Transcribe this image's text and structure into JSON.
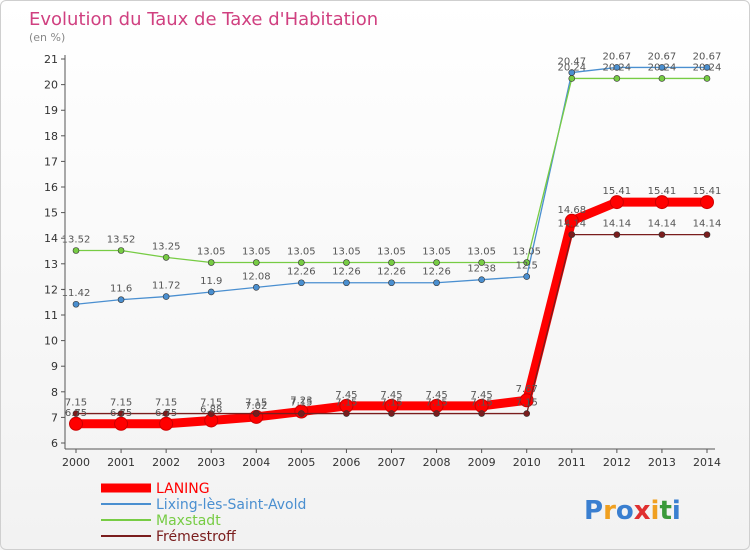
{
  "chart_data": {
    "type": "line",
    "title": "Evolution du Taux de Taxe d'Habitation",
    "subtitle": "(en %)",
    "x": [
      2000,
      2001,
      2002,
      2003,
      2004,
      2005,
      2006,
      2007,
      2008,
      2009,
      2010,
      2011,
      2012,
      2013,
      2014
    ],
    "ylim": [
      6,
      21
    ],
    "yticks": [
      6,
      7,
      8,
      9,
      10,
      11,
      12,
      13,
      14,
      15,
      16,
      17,
      18,
      19,
      20,
      21
    ],
    "grid": false,
    "legend_position": "bottom-left",
    "series": [
      {
        "name": "LANING",
        "color": "#ff0000",
        "values": [
          6.75,
          6.75,
          6.75,
          6.88,
          7.02,
          7.23,
          7.45,
          7.45,
          7.45,
          7.45,
          7.67,
          14.68,
          15.41,
          15.41,
          15.41
        ],
        "labels": [
          "6.75",
          "6.75",
          "6.75",
          "6.88",
          "7.02",
          "7.23",
          "7.45",
          "7.45",
          "7.45",
          "7.45",
          "7.67",
          "14.68",
          "15.41",
          "15.41",
          "15.41"
        ]
      },
      {
        "name": "Lixing-lès-Saint-Avold",
        "color": "#4a8fd0",
        "values": [
          11.42,
          11.6,
          11.72,
          11.9,
          12.08,
          12.26,
          12.26,
          12.26,
          12.26,
          12.38,
          12.5,
          20.47,
          20.67,
          20.67,
          20.67
        ],
        "labels": [
          "11.42",
          "11.6",
          "11.72",
          "11.9",
          "12.08",
          "12.26",
          "12.26",
          "12.26",
          "12.26",
          "12.38",
          "12.5",
          "20.47",
          "20.67",
          "20.67",
          "20.67"
        ]
      },
      {
        "name": "Maxstadt",
        "color": "#77cc44",
        "values": [
          13.52,
          13.52,
          13.25,
          13.05,
          13.05,
          13.05,
          13.05,
          13.05,
          13.05,
          13.05,
          13.05,
          20.24,
          20.24,
          20.24,
          20.24
        ],
        "labels": [
          "13.52",
          "13.52",
          "13.25",
          "13.05",
          "13.05",
          "13.05",
          "13.05",
          "13.05",
          "13.05",
          "13.05",
          "13.05",
          "20.24",
          "20.24",
          "20.24",
          "20.24"
        ]
      },
      {
        "name": "Frémestroff",
        "color": "#7a1d1d",
        "values": [
          7.15,
          7.15,
          7.15,
          7.15,
          7.15,
          7.15,
          7.15,
          7.15,
          7.15,
          7.15,
          7.15,
          14.14,
          14.14,
          14.14,
          14.14
        ],
        "labels": [
          "7.15",
          "7.15",
          "7.15",
          "7.15",
          "7.15",
          "7.15",
          "7.15",
          "7.15",
          "7.15",
          "7.15",
          "7.15",
          "14.14",
          "14.14",
          "14.14",
          "14.14"
        ]
      }
    ]
  },
  "brand": {
    "letters": [
      "P",
      "r",
      "o",
      "x",
      "i",
      "t",
      "i"
    ],
    "colors": [
      "#3a7fd0",
      "#f0a020",
      "#3a7fd0",
      "#e03030",
      "#f0a020",
      "#3a9a3a",
      "#3a7fd0"
    ]
  }
}
